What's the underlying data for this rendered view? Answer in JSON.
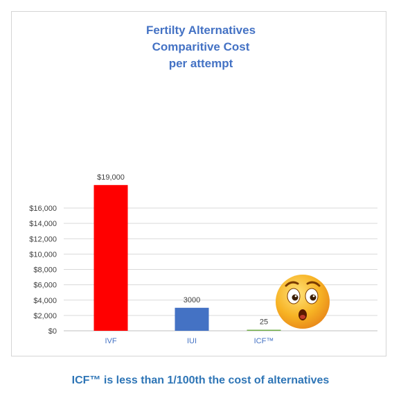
{
  "chart_data": {
    "type": "bar",
    "title": [
      "Fertilty Alternatives",
      "Comparitive Cost",
      "per attempt"
    ],
    "categories": [
      "IVF",
      "IUI",
      "ICF™"
    ],
    "values": [
      19000,
      3000,
      25
    ],
    "data_labels": [
      "$19,000",
      "3000",
      "25"
    ],
    "bar_colors": [
      "#ff0000",
      "#4472c4",
      "#70ad47"
    ],
    "y_ticks": [
      0,
      2000,
      4000,
      6000,
      8000,
      10000,
      12000,
      14000,
      16000
    ],
    "y_tick_labels": [
      "$0",
      "$2,000",
      "$4,000",
      "$6,000",
      "$8,000",
      "$10,000",
      "$12,000",
      "$14,000",
      "$16,000"
    ],
    "ylim": [
      0,
      19000
    ],
    "grid": true,
    "legend": "none",
    "xlabel": "",
    "ylabel": ""
  },
  "decoration": {
    "emoji": "surprised-face-emoji"
  },
  "caption": "ICF™ is less than 1/100th the cost of alternatives"
}
